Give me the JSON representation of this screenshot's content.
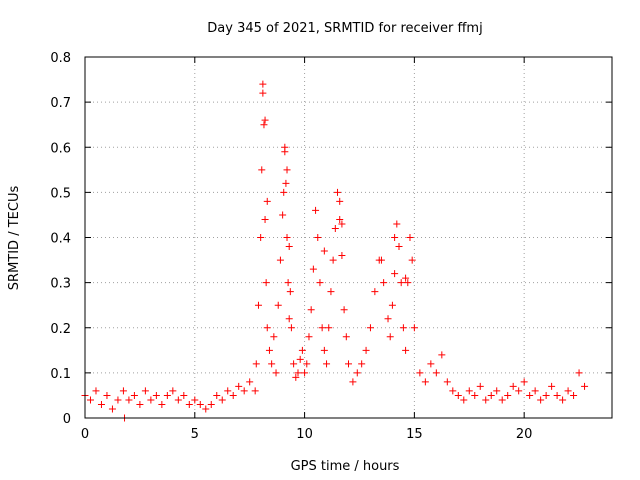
{
  "chart_data": {
    "type": "scatter",
    "title": "Day 345 of 2021, SRMTID for receiver ffmj",
    "xlabel": "GPS time / hours",
    "ylabel": "SRMTID / TECUs",
    "xlim": [
      0,
      24
    ],
    "ylim": [
      0,
      0.8
    ],
    "xticks": [
      0,
      5,
      10,
      15,
      20
    ],
    "yticks": [
      0,
      0.1,
      0.2,
      0.3,
      0.4,
      0.5,
      0.6,
      0.7,
      0.8
    ],
    "xtick_labels": [
      "0",
      "5",
      "10",
      "15",
      "20"
    ],
    "ytick_labels": [
      "0",
      "0.1",
      "0.2",
      "0.3",
      "0.4",
      "0.5",
      "0.6",
      "0.7",
      "0.8"
    ],
    "grid": true,
    "marker": "+",
    "series": [
      {
        "name": "SRMTID",
        "color": "#ff0000",
        "x": [
          0.0,
          0.25,
          0.5,
          0.75,
          1.0,
          1.25,
          1.5,
          1.75,
          2.0,
          2.25,
          2.5,
          2.75,
          3.0,
          3.25,
          3.5,
          3.75,
          4.0,
          4.25,
          4.5,
          4.75,
          5.0,
          5.25,
          5.5,
          5.75,
          6.0,
          6.25,
          6.5,
          6.75,
          7.0,
          7.25,
          7.5,
          7.75,
          7.8,
          7.9,
          8.0,
          8.05,
          8.1,
          8.15,
          8.2,
          8.25,
          8.3,
          8.4,
          8.5,
          8.6,
          8.7,
          8.8,
          8.9,
          9.0,
          9.05,
          9.1,
          9.15,
          9.2,
          9.25,
          9.3,
          9.35,
          9.4,
          9.5,
          9.6,
          9.7,
          9.8,
          9.9,
          10.0,
          10.1,
          10.2,
          10.3,
          10.4,
          10.5,
          10.6,
          10.7,
          10.8,
          10.9,
          11.0,
          11.1,
          11.2,
          11.3,
          11.4,
          11.5,
          11.6,
          11.7,
          11.8,
          11.9,
          12.0,
          12.2,
          12.4,
          12.6,
          12.8,
          13.0,
          13.2,
          13.4,
          13.6,
          13.8,
          13.9,
          14.0,
          14.1,
          14.2,
          14.3,
          14.4,
          14.5,
          14.6,
          14.7,
          14.8,
          14.9,
          15.0,
          15.25,
          15.5,
          15.75,
          16.0,
          16.25,
          16.5,
          16.75,
          17.0,
          17.25,
          17.5,
          17.75,
          18.0,
          18.25,
          18.5,
          18.75,
          19.0,
          19.25,
          19.5,
          19.75,
          20.0,
          20.25,
          20.5,
          20.75,
          21.0,
          21.25,
          21.5,
          21.75,
          22.0,
          22.25,
          22.5,
          22.75,
          1.8,
          8.1,
          8.2,
          8.3,
          9.1,
          9.2,
          9.3,
          10.9,
          11.6,
          11.7,
          13.5,
          14.1,
          14.6
        ],
        "y": [
          0.05,
          0.04,
          0.06,
          0.03,
          0.05,
          0.02,
          0.04,
          0.06,
          0.04,
          0.05,
          0.03,
          0.06,
          0.04,
          0.05,
          0.03,
          0.05,
          0.06,
          0.04,
          0.05,
          0.03,
          0.04,
          0.03,
          0.02,
          0.03,
          0.05,
          0.04,
          0.06,
          0.05,
          0.07,
          0.06,
          0.08,
          0.06,
          0.12,
          0.25,
          0.4,
          0.55,
          0.74,
          0.65,
          0.44,
          0.3,
          0.2,
          0.15,
          0.12,
          0.18,
          0.1,
          0.25,
          0.35,
          0.45,
          0.5,
          0.59,
          0.52,
          0.4,
          0.3,
          0.22,
          0.28,
          0.2,
          0.12,
          0.09,
          0.1,
          0.13,
          0.15,
          0.1,
          0.12,
          0.18,
          0.24,
          0.33,
          0.46,
          0.4,
          0.3,
          0.2,
          0.15,
          0.12,
          0.2,
          0.28,
          0.35,
          0.42,
          0.5,
          0.44,
          0.36,
          0.24,
          0.18,
          0.12,
          0.08,
          0.1,
          0.12,
          0.15,
          0.2,
          0.28,
          0.35,
          0.3,
          0.22,
          0.18,
          0.25,
          0.32,
          0.43,
          0.38,
          0.3,
          0.2,
          0.15,
          0.3,
          0.4,
          0.35,
          0.2,
          0.1,
          0.08,
          0.12,
          0.1,
          0.14,
          0.08,
          0.06,
          0.05,
          0.04,
          0.06,
          0.05,
          0.07,
          0.04,
          0.05,
          0.06,
          0.04,
          0.05,
          0.07,
          0.06,
          0.08,
          0.05,
          0.06,
          0.04,
          0.05,
          0.07,
          0.05,
          0.04,
          0.06,
          0.05,
          0.1,
          0.07,
          0.0,
          0.72,
          0.66,
          0.48,
          0.6,
          0.55,
          0.38,
          0.37,
          0.48,
          0.43,
          0.35,
          0.4,
          0.31
        ]
      }
    ]
  }
}
